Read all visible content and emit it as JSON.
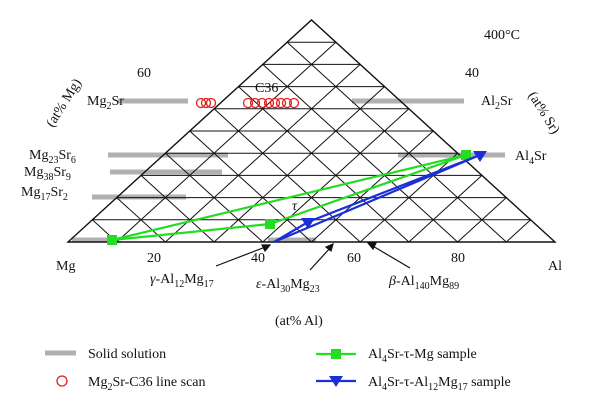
{
  "temperature": "400°C",
  "corners": {
    "mg": "Mg",
    "al": "Al"
  },
  "axis": {
    "left": "(at% Mg)",
    "right": "(at% Sr)",
    "bottom": "(at% Al)"
  },
  "ticks": {
    "left_60": "60",
    "right_40": "40",
    "bottom": [
      "20",
      "40",
      "60",
      "80"
    ]
  },
  "phases": {
    "mg2sr": {
      "base": "Mg",
      "s1": "2",
      "mid": "Sr",
      "s2": ""
    },
    "c36": "C36",
    "mg23sr6": {
      "base": "Mg",
      "s1": "23",
      "mid": "Sr",
      "s2": "6"
    },
    "mg38sr9": {
      "base": "Mg",
      "s1": "38",
      "mid": "Sr",
      "s2": "9"
    },
    "mg17sr2": {
      "base": "Mg",
      "s1": "17",
      "mid": "Sr",
      "s2": "2"
    },
    "al2sr": {
      "base": "Al",
      "s1": "2",
      "mid": "Sr",
      "s2": ""
    },
    "al4sr": {
      "base": "Al",
      "s1": "4",
      "mid": "Sr",
      "s2": ""
    },
    "tau": "τ",
    "gamma": {
      "prefix": "γ-",
      "base": "Al",
      "s1": "12",
      "mid": "Mg",
      "s2": "17"
    },
    "epsilon": {
      "prefix": "ε-",
      "base": "Al",
      "s1": "30",
      "mid": "Mg",
      "s2": "23"
    },
    "beta": {
      "prefix": "β-",
      "base": "Al",
      "s1": "140",
      "mid": "Mg",
      "s2": "89"
    }
  },
  "legend": {
    "solid_solution": "Solid solution",
    "line_scan": {
      "base": "Mg",
      "s1": "2",
      "rest": "Sr-C36 line scan"
    },
    "green_sample": {
      "base": "Al",
      "s1": "4",
      "rest": "Sr-τ-Mg sample"
    },
    "blue_sample": {
      "base": "Al",
      "s1": "4",
      "rest": "Sr-τ-Al",
      "s2": "12",
      "rest2": "Mg",
      "s3": "17",
      "rest3": " sample"
    }
  },
  "colors": {
    "solid_solution": "#b0b0b0",
    "line_scan": "#e02020",
    "green": "#22dd22",
    "blue": "#1a2fd6"
  },
  "chart_data": {
    "type": "ternary",
    "components": [
      "Mg",
      "Al",
      "Sr"
    ],
    "units": "at%",
    "line_scan_points_at_pct": [
      {
        "al": 16,
        "sr": 33
      },
      {
        "al": 17,
        "sr": 33
      },
      {
        "al": 18,
        "sr": 33
      },
      {
        "al": 27,
        "sr": 33
      },
      {
        "al": 29,
        "sr": 33
      },
      {
        "al": 31,
        "sr": 33
      },
      {
        "al": 33,
        "sr": 33
      },
      {
        "al": 35,
        "sr": 33
      },
      {
        "al": 37,
        "sr": 33
      },
      {
        "al": 39,
        "sr": 33
      },
      {
        "al": 41,
        "sr": 33
      }
    ],
    "green_sample_triangle_at_pct": [
      {
        "al": 0,
        "sr": 0
      },
      {
        "al": 80,
        "sr": 20
      },
      {
        "al": 40,
        "sr": 7
      }
    ],
    "blue_sample_triangle_at_pct": [
      {
        "al": 41,
        "sr": 0
      },
      {
        "al": 80,
        "sr": 20
      },
      {
        "al": 48,
        "sr": 7
      }
    ],
    "solid_solution_bars_at_pct": [
      {
        "sr": 33,
        "al_from": 3,
        "al_to": 12
      },
      {
        "sr": 33,
        "al_from": 58,
        "al_to": 66
      },
      {
        "sr": 20,
        "al_from": 0,
        "al_to": 15
      },
      {
        "sr": 20,
        "al_from": 79,
        "al_to": 82
      },
      {
        "sr": 14.5,
        "al_from": 1,
        "al_to": 17
      },
      {
        "sr": 11.5,
        "al_from": 3,
        "al_to": 15
      },
      {
        "sr": 7,
        "al_from": 1,
        "al_to": 15
      },
      {
        "sr": 0,
        "al_from": 0,
        "al_to": 10
      },
      {
        "sr": 0,
        "al_from": 44,
        "al_to": 56
      }
    ]
  }
}
